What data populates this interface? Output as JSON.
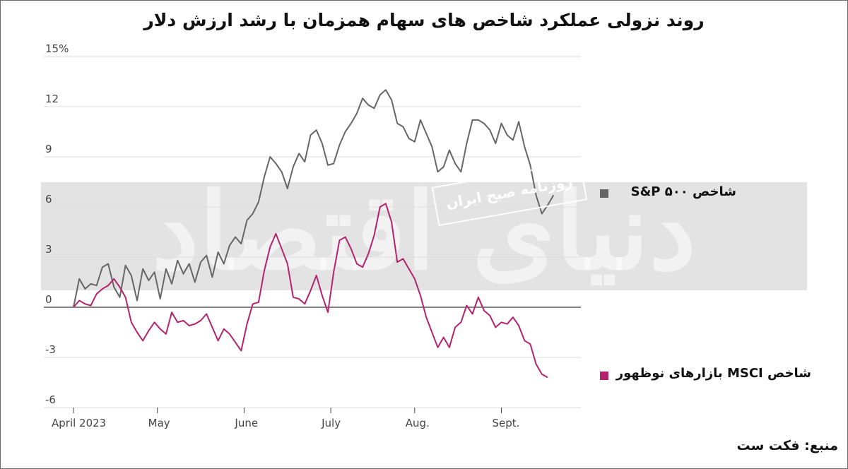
{
  "title": "روند نزولی عملکرد شاخص های سهام همزمان با رشد ارزش دلار",
  "source": "منبع: فکت ست",
  "watermark": {
    "logo_text": "دنیای اقتصاد",
    "subtitle": "روزنامه صبح ایران"
  },
  "colors": {
    "sp500": "#666666",
    "msci": "#b5236e",
    "band": "#e3e3e3",
    "grid": "#dddddd"
  },
  "chart_data": {
    "type": "line",
    "title": "روند نزولی عملکرد شاخص های سهام همزمان با رشد ارزش دلار",
    "xlabel": "",
    "ylabel": "",
    "ylim": [
      -6,
      15
    ],
    "xlim": [
      0,
      175
    ],
    "grid": true,
    "legend": "right",
    "y_ticks": [
      "15%",
      "12",
      "9",
      "6",
      "3",
      "0",
      "-3",
      "-6"
    ],
    "y_tick_values": [
      15,
      12,
      9,
      6,
      3,
      0,
      -3,
      -6
    ],
    "x_ticks": [
      {
        "label": "April 2023",
        "x": 0
      },
      {
        "label": "May",
        "x": 29
      },
      {
        "label": "June",
        "x": 59
      },
      {
        "label": "July",
        "x": 89
      },
      {
        "label": "Aug.",
        "x": 118
      },
      {
        "label": "Sept.",
        "x": 148
      }
    ],
    "series": [
      {
        "name": "شاخص S&P ۵۰۰",
        "color": "#666666",
        "x": [
          0,
          2,
          4,
          6,
          8,
          10,
          12,
          14,
          16,
          18,
          20,
          22,
          24,
          26,
          28,
          30,
          32,
          34,
          36,
          38,
          40,
          42,
          44,
          46,
          48,
          50,
          52,
          54,
          56,
          58,
          60,
          62,
          64,
          66,
          68,
          70,
          72,
          74,
          76,
          78,
          80,
          82,
          84,
          86,
          88,
          90,
          92,
          94,
          96,
          98,
          100,
          102,
          104,
          106,
          108,
          110,
          112,
          114,
          116,
          118,
          120,
          122,
          124,
          126,
          128,
          130,
          132,
          134,
          136,
          138,
          140,
          142,
          144,
          146,
          148,
          150,
          152,
          154,
          156,
          158,
          160,
          162,
          164,
          166,
          168,
          170,
          172,
          174
        ],
        "values": [
          0,
          1.7,
          1.1,
          1.4,
          1.3,
          2.4,
          2.6,
          1.2,
          0.6,
          2.5,
          1.9,
          0.4,
          2.3,
          1.6,
          2.1,
          0.5,
          2.3,
          1.4,
          2.8,
          2.0,
          2.6,
          1.5,
          2.7,
          3.1,
          1.8,
          3.3,
          2.6,
          3.7,
          4.2,
          3.8,
          5.2,
          5.6,
          6.3,
          7.8,
          9.0,
          8.6,
          8.1,
          7.1,
          8.4,
          9.2,
          8.7,
          10.3,
          10.6,
          9.8,
          8.5,
          8.6,
          9.7,
          10.5,
          11.0,
          11.6,
          12.5,
          12.1,
          11.9,
          12.7,
          13.0,
          12.4,
          11.0,
          10.8,
          10.1,
          9.9,
          11.2,
          10.4,
          9.6,
          8.1,
          8.4,
          9.4,
          8.6,
          8.1,
          9.8,
          11.2,
          11.2,
          11.0,
          10.6,
          9.8,
          11.0,
          10.3,
          10.0,
          11.1,
          9.6,
          8.5,
          6.7,
          5.6,
          6.1,
          6.7,
          null,
          null,
          null,
          null
        ]
      },
      {
        "name": "شاخص MSCI بازارهای نوظهور",
        "color": "#b5236e",
        "x": [
          0,
          2,
          4,
          6,
          8,
          10,
          12,
          14,
          16,
          18,
          20,
          22,
          24,
          26,
          28,
          30,
          32,
          34,
          36,
          38,
          40,
          42,
          44,
          46,
          48,
          50,
          52,
          54,
          56,
          58,
          60,
          62,
          64,
          66,
          68,
          70,
          72,
          74,
          76,
          78,
          80,
          82,
          84,
          86,
          88,
          90,
          92,
          94,
          96,
          98,
          100,
          102,
          104,
          106,
          108,
          110,
          112,
          114,
          116,
          118,
          120,
          122,
          124,
          126,
          128,
          130,
          132,
          134,
          136,
          138,
          140,
          142,
          144,
          146,
          148,
          150,
          152,
          154,
          156,
          158,
          160,
          162,
          164,
          166,
          168,
          170,
          172,
          174
        ],
        "values": [
          0,
          0.4,
          0.2,
          0.1,
          0.8,
          1.1,
          1.3,
          1.7,
          1.2,
          0.6,
          -0.9,
          -1.5,
          -2.0,
          -1.4,
          -0.9,
          -1.3,
          -1.6,
          -0.3,
          -0.9,
          -0.8,
          -1.1,
          -1.0,
          -0.8,
          -0.4,
          -1.2,
          -2.0,
          -1.3,
          -1.6,
          -2.1,
          -2.6,
          -1.0,
          0.2,
          0.3,
          2.2,
          3.6,
          4.4,
          3.5,
          2.6,
          0.6,
          0.5,
          0.2,
          1.0,
          1.9,
          0.7,
          -0.3,
          2.1,
          4.0,
          4.2,
          3.5,
          2.6,
          2.4,
          3.2,
          4.3,
          6.0,
          6.2,
          5.1,
          2.7,
          2.9,
          2.3,
          1.7,
          0.7,
          -0.6,
          -1.5,
          -2.4,
          -1.8,
          -2.4,
          -1.2,
          -0.9,
          0.1,
          -0.4,
          0.6,
          -0.2,
          -0.5,
          -1.2,
          -0.9,
          -1.0,
          -0.6,
          -1.1,
          -2.0,
          -2.2,
          -3.4,
          -4.0,
          -4.2,
          null,
          null,
          null,
          null,
          null
        ]
      }
    ]
  },
  "legend": {
    "sp500_label": "شاخص S&P ۵۰۰",
    "msci_label": "شاخص MSCI بازارهای نوظهور"
  }
}
